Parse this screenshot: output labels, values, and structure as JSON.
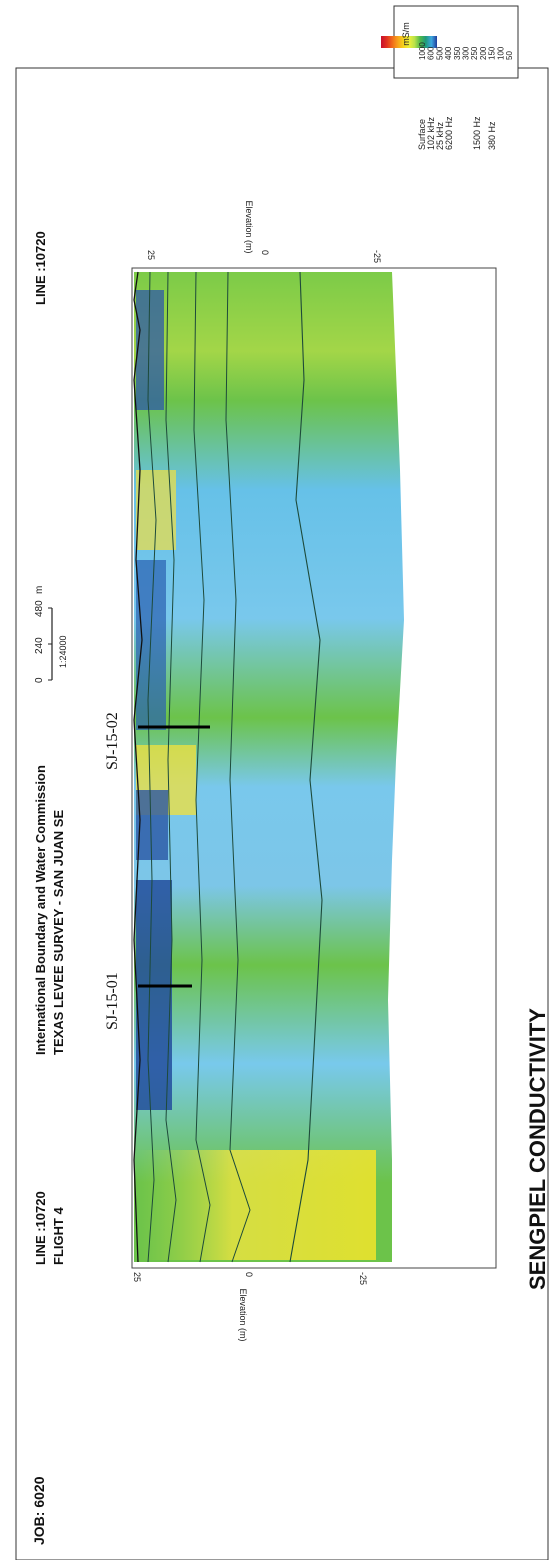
{
  "header": {
    "job": "JOB: 6020",
    "line_left": "LINE :10720",
    "flight": "FLIGHT 4",
    "org": "International Boundary and Water Commission",
    "survey": "TEXAS LEVEE SURVEY - SAN JUAN SE",
    "line_right": "LINE :10720"
  },
  "section_title": "SENGPIEL CONDUCTIVITY",
  "scale_bar": {
    "ticks": [
      "0",
      "240",
      "480"
    ],
    "unit": "m",
    "ratio": "1:24000"
  },
  "legend": {
    "unit": "mS/m",
    "labels": [
      "1000",
      "600",
      "500",
      "400",
      "350",
      "300",
      "250",
      "200",
      "150",
      "100",
      "50"
    ],
    "colors": [
      "#c8102e",
      "#e03020",
      "#f06a1a",
      "#f7a21b",
      "#f5d31c",
      "#eef03a",
      "#b9e24a",
      "#4fb84a",
      "#1e9a7c",
      "#3ea7e0",
      "#1f3c9a"
    ]
  },
  "axis": {
    "label": "Elevation (m)",
    "ticks": [
      "25",
      "0",
      "-25"
    ]
  },
  "frequencies": [
    "Surface",
    "102 kHz",
    "25 kHz",
    "6200 Hz",
    "1500 Hz",
    "380 Hz"
  ],
  "boreholes": [
    "SJ-15-01",
    "SJ-15-02"
  ]
}
